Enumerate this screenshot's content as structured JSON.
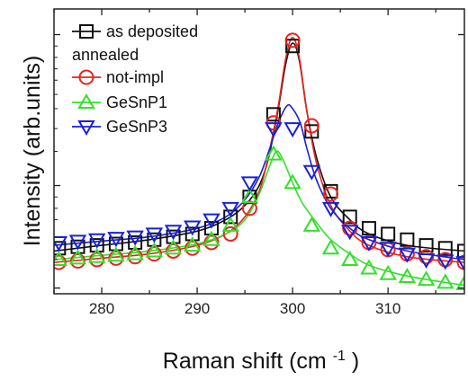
{
  "chart_data": {
    "type": "line",
    "xlabel": "Raman shift",
    "xlabel_unit_base": "(cm",
    "xlabel_unit_exp": "-1",
    "xlabel_unit_close": ")",
    "ylabel": "Intensity (arb.units)",
    "xlim": [
      275,
      318
    ],
    "ylim": [
      0,
      1
    ],
    "x_ticks": [
      280,
      290,
      300,
      310
    ],
    "y_scale_labels": false,
    "legend_group_label": "annealed",
    "legend_position": "top-left",
    "series": [
      {
        "name": "as deposited",
        "color": "#111111",
        "marker": "square",
        "curve_x": [
          275,
          280,
          285,
          290,
          293,
          295,
          296.5,
          297.5,
          298.5,
          299.3,
          300,
          300.7,
          301.5,
          302.5,
          304,
          306,
          308,
          312,
          318
        ],
        "curve_y": [
          0.15,
          0.17,
          0.19,
          0.22,
          0.26,
          0.31,
          0.38,
          0.48,
          0.65,
          0.81,
          0.88,
          0.82,
          0.64,
          0.48,
          0.34,
          0.26,
          0.21,
          0.17,
          0.15
        ],
        "points_x": [
          275.5,
          277.5,
          279.5,
          281.5,
          283.5,
          285.5,
          287.5,
          289.5,
          291.5,
          293.5,
          295.5,
          298.0,
          300.0,
          302.0,
          304.0,
          306.0,
          308.0,
          310.0,
          312.0,
          314.0,
          316.0,
          318.0
        ],
        "points_y": [
          0.16,
          0.165,
          0.17,
          0.175,
          0.18,
          0.19,
          0.2,
          0.21,
          0.23,
          0.27,
          0.34,
          0.63,
          0.87,
          0.57,
          0.36,
          0.27,
          0.23,
          0.21,
          0.19,
          0.17,
          0.16,
          0.15
        ]
      },
      {
        "name": "not-impl",
        "color": "#e8241f",
        "marker": "circle",
        "curve_x": [
          275,
          280,
          285,
          290,
          293,
          295,
          296.5,
          297.5,
          298.5,
          299.3,
          300,
          300.7,
          301.5,
          302.5,
          304,
          306,
          308,
          312,
          318
        ],
        "curve_y": [
          0.11,
          0.125,
          0.14,
          0.17,
          0.21,
          0.27,
          0.36,
          0.49,
          0.66,
          0.83,
          0.9,
          0.83,
          0.64,
          0.46,
          0.31,
          0.22,
          0.17,
          0.13,
          0.11
        ],
        "points_x": [
          275.5,
          277.5,
          279.5,
          281.5,
          283.5,
          285.5,
          287.5,
          289.5,
          291.5,
          293.5,
          295.5,
          298.0,
          300.0,
          302.0,
          304.0,
          306.0,
          308.0,
          310.0,
          312.0,
          314.0,
          316.0,
          318.0
        ],
        "points_y": [
          0.11,
          0.115,
          0.12,
          0.125,
          0.13,
          0.14,
          0.15,
          0.16,
          0.18,
          0.21,
          0.3,
          0.6,
          0.89,
          0.59,
          0.35,
          0.23,
          0.18,
          0.155,
          0.14,
          0.13,
          0.12,
          0.11
        ]
      },
      {
        "name": "GeSnP1",
        "color": "#33e02a",
        "marker": "triangle-up",
        "curve_x": [
          275,
          280,
          285,
          290,
          293,
          295,
          296.5,
          297.5,
          298.3,
          299,
          300,
          301,
          302.5,
          304,
          306,
          308,
          311,
          314,
          318
        ],
        "curve_y": [
          0.12,
          0.135,
          0.15,
          0.175,
          0.21,
          0.26,
          0.35,
          0.44,
          0.5,
          0.47,
          0.39,
          0.32,
          0.25,
          0.19,
          0.14,
          0.1,
          0.07,
          0.05,
          0.03
        ],
        "points_x": [
          275.5,
          277.5,
          279.5,
          281.5,
          283.5,
          285.5,
          287.5,
          289.5,
          291.5,
          293.5,
          295.5,
          298.0,
          300.0,
          302.0,
          304.0,
          306.0,
          308.0,
          310.0,
          312.0,
          314.0,
          316.0,
          318.0
        ],
        "points_y": [
          0.12,
          0.125,
          0.13,
          0.135,
          0.14,
          0.15,
          0.16,
          0.17,
          0.19,
          0.24,
          0.34,
          0.49,
          0.39,
          0.24,
          0.16,
          0.12,
          0.09,
          0.07,
          0.06,
          0.05,
          0.04,
          0.035
        ]
      },
      {
        "name": "GeSnP3",
        "color": "#1820d8",
        "marker": "triangle-down",
        "curve_x": [
          275,
          280,
          285,
          290,
          293,
          295,
          296.5,
          297.5,
          298.5,
          299.4,
          300,
          300.8,
          301.5,
          302.5,
          304,
          306,
          308,
          312,
          318
        ],
        "curve_y": [
          0.17,
          0.185,
          0.2,
          0.23,
          0.27,
          0.33,
          0.41,
          0.5,
          0.6,
          0.66,
          0.65,
          0.6,
          0.51,
          0.4,
          0.3,
          0.23,
          0.19,
          0.15,
          0.12
        ],
        "points_x": [
          275.5,
          277.5,
          279.5,
          281.5,
          283.5,
          285.5,
          287.5,
          289.5,
          291.5,
          293.5,
          295.5,
          298.0,
          300.0,
          302.0,
          304.0,
          306.0,
          308.0,
          310.0,
          312.0,
          314.0,
          316.0,
          318.0
        ],
        "points_y": [
          0.18,
          0.185,
          0.19,
          0.195,
          0.2,
          0.21,
          0.22,
          0.235,
          0.26,
          0.3,
          0.39,
          0.58,
          0.58,
          0.43,
          0.3,
          0.22,
          0.18,
          0.16,
          0.14,
          0.12,
          0.115,
          0.11
        ]
      }
    ]
  }
}
